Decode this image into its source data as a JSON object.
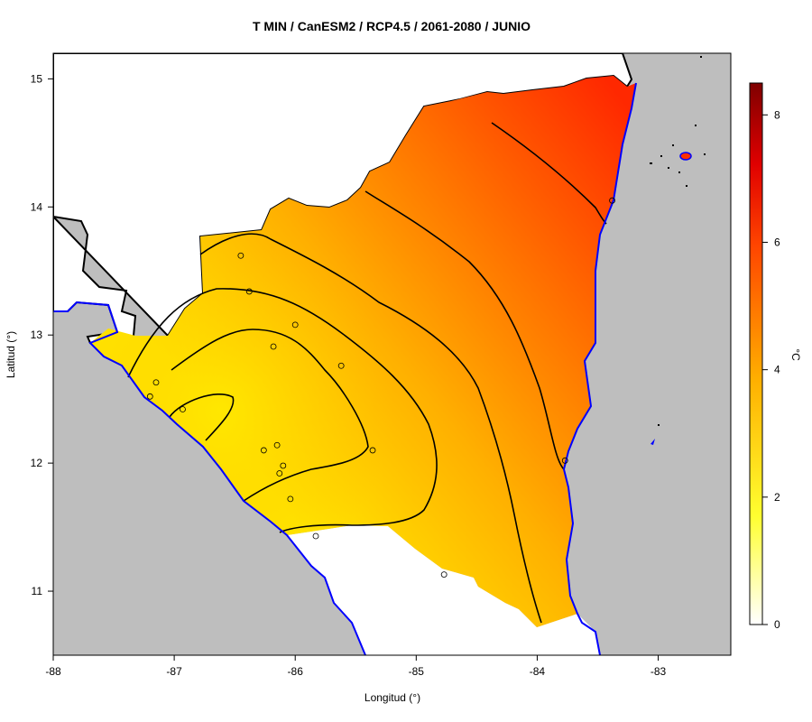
{
  "title": "T MIN / CanESM2 / RCP4.5 / 2061-2080 / JUNIO",
  "xlabel": "Longitud (°)",
  "ylabel": "Latitud (°)",
  "colorbar_unit": "°C",
  "colors": {
    "ocean_and_neighbors": "#bebebe",
    "coastline": "#0000ff",
    "border": "#000000",
    "scale_low": "#ffffff",
    "scale_mid": "#ffff00",
    "scale_high": "#7f0000"
  },
  "map_extent": {
    "lon": [
      -88,
      -82.4
    ],
    "lat": [
      10.5,
      15.2
    ]
  },
  "x_ticks": [
    -88,
    -87,
    -86,
    -85,
    -84,
    -83
  ],
  "y_ticks": [
    11,
    12,
    13,
    14,
    15
  ],
  "colorbar_ticks": [
    0,
    2,
    4,
    6,
    8
  ],
  "colorbar_range": [
    0,
    8.5
  ],
  "stations": [
    {
      "lon": -86.45,
      "lat": 13.62
    },
    {
      "lon": -86.38,
      "lat": 13.34
    },
    {
      "lon": -86.0,
      "lat": 13.08
    },
    {
      "lon": -86.18,
      "lat": 12.91
    },
    {
      "lon": -85.62,
      "lat": 12.76
    },
    {
      "lon": -87.15,
      "lat": 12.63
    },
    {
      "lon": -87.2,
      "lat": 12.52
    },
    {
      "lon": -86.93,
      "lat": 12.42
    },
    {
      "lon": -86.15,
      "lat": 12.14
    },
    {
      "lon": -86.26,
      "lat": 12.1
    },
    {
      "lon": -85.36,
      "lat": 12.1
    },
    {
      "lon": -86.1,
      "lat": 11.98
    },
    {
      "lon": -86.13,
      "lat": 11.92
    },
    {
      "lon": -86.04,
      "lat": 11.72
    },
    {
      "lon": -85.83,
      "lat": 11.43
    },
    {
      "lon": -84.77,
      "lat": 11.13
    },
    {
      "lon": -83.77,
      "lat": 12.02
    },
    {
      "lon": -83.38,
      "lat": 14.05
    }
  ]
}
